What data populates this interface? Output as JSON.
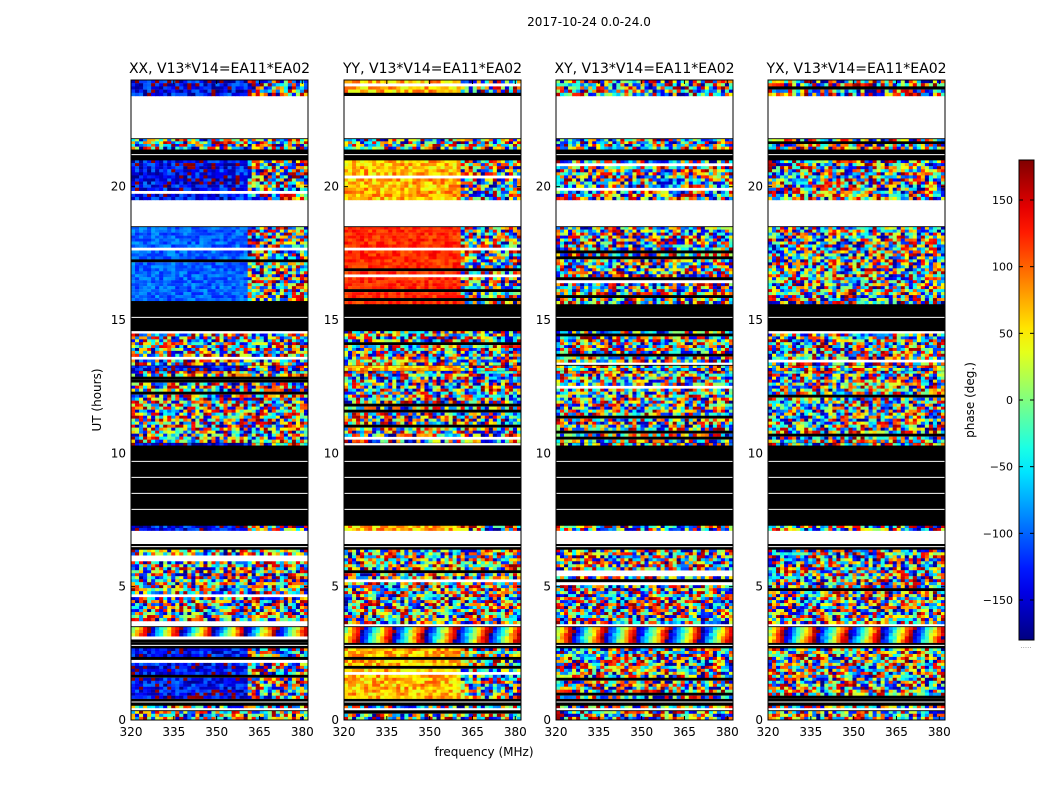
{
  "suptitle": "2017-10-24 0.0-24.0",
  "chart_data": {
    "type": "heatmap",
    "x_label": "frequency (MHz)",
    "y_label": "UT (hours)",
    "x_range": [
      320,
      382
    ],
    "y_range": [
      0,
      24
    ],
    "x_ticks": [
      320,
      335,
      350,
      365,
      380
    ],
    "y_ticks": [
      0,
      5,
      10,
      15,
      20
    ],
    "colorbar": {
      "label": "phase (deg.)",
      "range": [
        -180,
        180
      ],
      "ticks": [
        150,
        100,
        50,
        0,
        -50,
        -100,
        -150
      ],
      "tick_labels": [
        "150",
        "100",
        "50",
        "0",
        "−50",
        "−100",
        "−150"
      ],
      "colormap": "jet",
      "bottom_label": "....."
    },
    "panels": [
      {
        "title": "XX, V13*V14=EA11*EA02",
        "polarization": "XX",
        "mean_phase": -140,
        "noise_deg": 50,
        "coherent_cutoff_mhz": 361,
        "high_freq_mode": "noise"
      },
      {
        "title": "YY, V13*V14=EA11*EA02",
        "polarization": "YY",
        "mean_phase": 70,
        "noise_deg": 40,
        "coherent_cutoff_mhz": 361,
        "high_freq_mode": "noise"
      },
      {
        "title": "XY, V13*V14=EA11*EA02",
        "polarization": "XY",
        "mean_phase": 0,
        "noise_deg": 180,
        "coherent_cutoff_mhz": 0,
        "high_freq_mode": "noise"
      },
      {
        "title": "YX, V13*V14=EA11*EA02",
        "polarization": "YX",
        "mean_phase": 0,
        "noise_deg": 180,
        "coherent_cutoff_mhz": 0,
        "high_freq_mode": "noise"
      }
    ],
    "time_segments_ut": [
      {
        "start": 0.0,
        "end": 0.35,
        "kind": "noise"
      },
      {
        "start": 0.35,
        "end": 0.45,
        "kind": "gap"
      },
      {
        "start": 0.45,
        "end": 0.55,
        "kind": "noise"
      },
      {
        "start": 0.55,
        "end": 0.8,
        "kind": "flagged"
      },
      {
        "start": 0.8,
        "end": 2.7,
        "kind": "coherent"
      },
      {
        "start": 2.7,
        "end": 2.9,
        "kind": "flagged"
      },
      {
        "start": 2.9,
        "end": 3.5,
        "kind": "fringe"
      },
      {
        "start": 3.5,
        "end": 3.6,
        "kind": "gap"
      },
      {
        "start": 3.6,
        "end": 6.4,
        "kind": "noise"
      },
      {
        "start": 6.4,
        "end": 6.6,
        "kind": "flagged"
      },
      {
        "start": 6.6,
        "end": 7.1,
        "kind": "gap"
      },
      {
        "start": 7.1,
        "end": 7.3,
        "kind": "coherent_thin"
      },
      {
        "start": 7.3,
        "end": 10.3,
        "kind": "flagged"
      },
      {
        "start": 10.3,
        "end": 10.4,
        "kind": "coherent_thin"
      },
      {
        "start": 10.4,
        "end": 13.1,
        "kind": "noise"
      },
      {
        "start": 13.1,
        "end": 13.3,
        "kind": "coherent_thin"
      },
      {
        "start": 13.3,
        "end": 14.6,
        "kind": "noise"
      },
      {
        "start": 14.6,
        "end": 15.6,
        "kind": "flagged"
      },
      {
        "start": 15.6,
        "end": 18.5,
        "kind": "coherent"
      },
      {
        "start": 18.5,
        "end": 19.5,
        "kind": "gap"
      },
      {
        "start": 19.5,
        "end": 21.0,
        "kind": "coherent"
      },
      {
        "start": 21.0,
        "end": 21.4,
        "kind": "flagged"
      },
      {
        "start": 21.4,
        "end": 21.8,
        "kind": "noise"
      },
      {
        "start": 21.8,
        "end": 23.4,
        "kind": "gap"
      },
      {
        "start": 23.4,
        "end": 24.0,
        "kind": "coherent"
      }
    ]
  }
}
